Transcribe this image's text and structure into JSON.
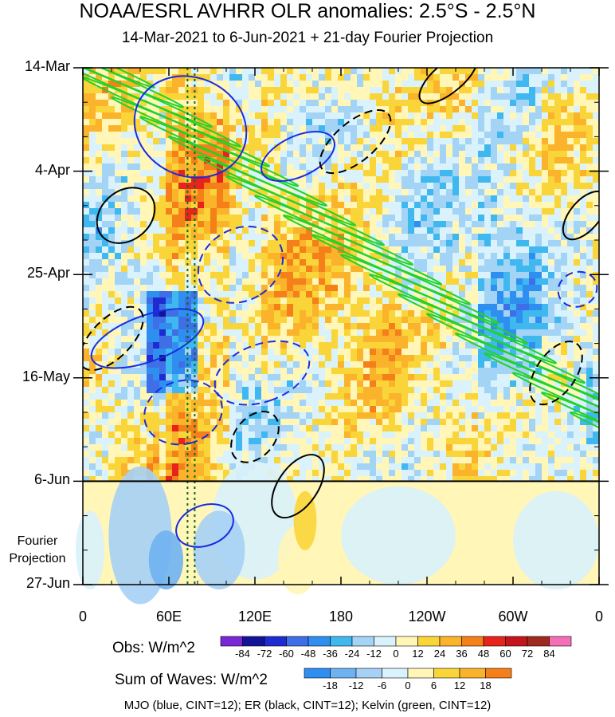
{
  "title": "NOAA/ESRL AVHRR OLR anomalies: 2.5°S - 2.5°N",
  "subtitle": "14-Mar-2021 to 6-Jun-2021 + 21-day Fourier Projection",
  "projection_label_1": "Fourier",
  "projection_label_2": "Projection",
  "footnote": "MJO (blue, CINT=12); ER (black, CINT=12); Kelvin (green, CINT=12)",
  "colorbar_obs": {
    "title": "Obs: W/m^2",
    "labels": [
      "-84",
      "-72",
      "-60",
      "-48",
      "-36",
      "-24",
      "-12",
      "0",
      "12",
      "24",
      "36",
      "48",
      "60",
      "72",
      "84"
    ],
    "colors": [
      "#7a28d6",
      "#13139a",
      "#1e2bd0",
      "#3f6fe6",
      "#2f8ff0",
      "#3fb8f0",
      "#a3d3f5",
      "#d9f2fb",
      "#fff6b8",
      "#fad53a",
      "#fab32a",
      "#f57f19",
      "#e8231c",
      "#c4141c",
      "#a0291f",
      "#f46fb8"
    ]
  },
  "colorbar_waves": {
    "title": "Sum of Waves: W/m^2",
    "labels": [
      "-18",
      "-12",
      "-6",
      "0",
      "6",
      "12",
      "18"
    ],
    "colors": [
      "#2f8ff0",
      "#6fb2f2",
      "#a6d0f5",
      "#d9f2fb",
      "#fff6b8",
      "#fad53a",
      "#fab32a",
      "#f57f19"
    ]
  },
  "chart_data": {
    "type": "heatmap",
    "title": "NOAA/ESRL AVHRR OLR anomalies: 2.5°S - 2.5°N",
    "subtitle": "14-Mar-2021 to 6-Jun-2021 + 21-day Fourier Projection",
    "x_axis": {
      "label": "",
      "ticks": [
        "0",
        "60E",
        "120E",
        "180",
        "120W",
        "60W",
        "0"
      ],
      "tick_lon": [
        0,
        60,
        120,
        180,
        240,
        300,
        360
      ],
      "range": [
        0,
        360
      ]
    },
    "y_axis": {
      "label": "",
      "ticks": [
        "14-Mar",
        "4-Apr",
        "25-Apr",
        "16-May",
        "6-Jun",
        "27-Jun"
      ],
      "tick_day": [
        0,
        21,
        42,
        63,
        84,
        105
      ],
      "range": [
        "14-Mar-2021",
        "27-Jun-2021"
      ],
      "reversed": true
    },
    "observation_end": "6-Jun",
    "projection_days": 21,
    "reference_lines_lon": [
      73,
      78
    ],
    "contours": [
      {
        "name": "MJO",
        "color": "blue",
        "cint": 12
      },
      {
        "name": "ER",
        "color": "black",
        "cint": 12
      },
      {
        "name": "Kelvin",
        "color": "green",
        "cint": 12
      }
    ],
    "obs_levels": [
      -84,
      -72,
      -60,
      -48,
      -36,
      -24,
      -12,
      0,
      12,
      24,
      36,
      48,
      60,
      72,
      84
    ],
    "waves_levels": [
      -18,
      -12,
      -6,
      0,
      6,
      12,
      18
    ]
  }
}
